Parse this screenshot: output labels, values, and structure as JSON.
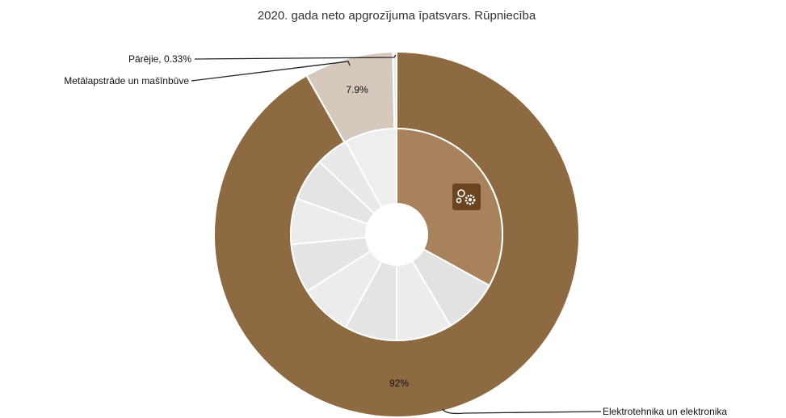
{
  "chart_data": {
    "type": "pie",
    "title": "2020. gada neto apgrozījuma īpatsvars. Rūpniecība",
    "outer_ring": [
      {
        "name": "Elektrotehnika un elektronika",
        "value": 92,
        "label": "92%",
        "color": "#8e6a42"
      },
      {
        "name": "Metālapstrāde un mašīnbūve",
        "value": 7.9,
        "label": "7.9%",
        "color": "#d5c9be"
      },
      {
        "name": "Pārējie, 0.33%",
        "value": 0.33,
        "label": "",
        "color": "#ede7e1"
      }
    ],
    "inner_ring": [
      {
        "value": 33,
        "color": "#a8825d",
        "highlight": true,
        "icon": "gears-icon"
      },
      {
        "value": 8.5,
        "color": "#e2e2e2"
      },
      {
        "value": 8.5,
        "color": "#ececec"
      },
      {
        "value": 8,
        "color": "#e4e4e4"
      },
      {
        "value": 8,
        "color": "#ececec"
      },
      {
        "value": 7.5,
        "color": "#e4e4e4"
      },
      {
        "value": 7,
        "color": "#ececec"
      },
      {
        "value": 6.5,
        "color": "#e4e4e4"
      },
      {
        "value": 5,
        "color": "#e9e9e9"
      },
      {
        "value": 8,
        "color": "#eeeeee"
      }
    ],
    "icon_bg_color": "#6b4420"
  }
}
